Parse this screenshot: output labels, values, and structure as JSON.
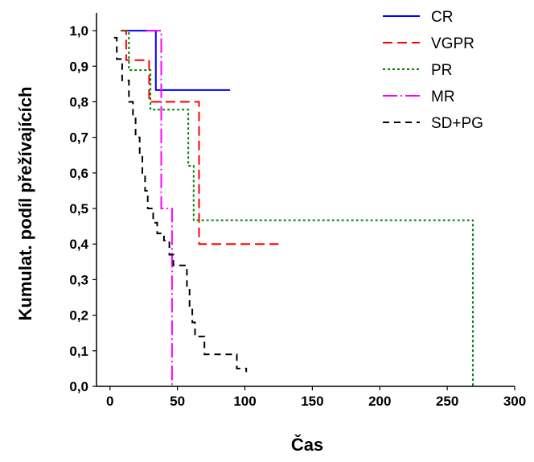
{
  "chart_data": {
    "type": "line",
    "step": true,
    "xlabel": "Čas",
    "ylabel": "Kumulat. podíl přežívajících",
    "xlim": [
      -10,
      300
    ],
    "ylim": [
      0,
      1.05
    ],
    "xticks": [
      {
        "value": 0,
        "label": "0"
      },
      {
        "value": 50,
        "label": "50"
      },
      {
        "value": 100,
        "label": "100"
      },
      {
        "value": 150,
        "label": "150"
      },
      {
        "value": 200,
        "label": "200"
      },
      {
        "value": 250,
        "label": "250"
      },
      {
        "value": 300,
        "label": "300"
      }
    ],
    "yticks": [
      {
        "value": 0.0,
        "label": "0,0"
      },
      {
        "value": 0.1,
        "label": "0,1"
      },
      {
        "value": 0.2,
        "label": "0,2"
      },
      {
        "value": 0.3,
        "label": "0,3"
      },
      {
        "value": 0.4,
        "label": "0,4"
      },
      {
        "value": 0.5,
        "label": "0,5"
      },
      {
        "value": 0.6,
        "label": "0,6"
      },
      {
        "value": 0.7,
        "label": "0,7"
      },
      {
        "value": 0.8,
        "label": "0,8"
      },
      {
        "value": 0.9,
        "label": "0,9"
      },
      {
        "value": 1.0,
        "label": "1,0"
      }
    ],
    "legend_position": "top-right",
    "series": [
      {
        "name": "CR",
        "color": "#0000ff",
        "dash": "solid",
        "points": [
          [
            10,
            1.0
          ],
          [
            34,
            1.0
          ],
          [
            34,
            0.833
          ],
          [
            89,
            0.833
          ]
        ]
      },
      {
        "name": "VGPR",
        "color": "#ff0000",
        "dash": "long-dash",
        "points": [
          [
            8,
            1.0
          ],
          [
            12,
            1.0
          ],
          [
            12,
            0.917
          ],
          [
            29,
            0.917
          ],
          [
            29,
            0.8
          ],
          [
            66,
            0.8
          ],
          [
            66,
            0.4
          ],
          [
            125,
            0.4
          ]
        ]
      },
      {
        "name": "PR",
        "color": "#008000",
        "dash": "dotted",
        "points": [
          [
            8,
            1.0
          ],
          [
            14,
            1.0
          ],
          [
            14,
            0.889
          ],
          [
            30,
            0.889
          ],
          [
            30,
            0.778
          ],
          [
            58,
            0.778
          ],
          [
            58,
            0.62
          ],
          [
            62,
            0.62
          ],
          [
            62,
            0.467
          ],
          [
            269,
            0.467
          ],
          [
            269,
            0.0
          ]
        ]
      },
      {
        "name": "MR",
        "color": "#ff00ff",
        "dash": "dash-dot",
        "points": [
          [
            27,
            1.0
          ],
          [
            38,
            1.0
          ],
          [
            38,
            0.5
          ],
          [
            46,
            0.5
          ],
          [
            46,
            0.0
          ]
        ]
      },
      {
        "name": "SD+PG",
        "color": "#000000",
        "dash": "dashed",
        "points": [
          [
            3,
            0.98
          ],
          [
            5,
            0.98
          ],
          [
            5,
            0.92
          ],
          [
            9,
            0.92
          ],
          [
            9,
            0.86
          ],
          [
            14,
            0.86
          ],
          [
            14,
            0.8
          ],
          [
            17,
            0.8
          ],
          [
            17,
            0.76
          ],
          [
            19,
            0.76
          ],
          [
            19,
            0.7
          ],
          [
            22,
            0.7
          ],
          [
            22,
            0.65
          ],
          [
            24,
            0.65
          ],
          [
            24,
            0.6
          ],
          [
            26,
            0.6
          ],
          [
            26,
            0.55
          ],
          [
            28,
            0.55
          ],
          [
            28,
            0.5
          ],
          [
            32,
            0.5
          ],
          [
            32,
            0.46
          ],
          [
            35,
            0.46
          ],
          [
            35,
            0.43
          ],
          [
            40,
            0.43
          ],
          [
            40,
            0.41
          ],
          [
            44,
            0.41
          ],
          [
            44,
            0.37
          ],
          [
            47,
            0.37
          ],
          [
            47,
            0.34
          ],
          [
            57,
            0.34
          ],
          [
            57,
            0.28
          ],
          [
            59,
            0.28
          ],
          [
            59,
            0.22
          ],
          [
            61,
            0.22
          ],
          [
            61,
            0.18
          ],
          [
            63,
            0.18
          ],
          [
            63,
            0.14
          ],
          [
            70,
            0.14
          ],
          [
            70,
            0.09
          ],
          [
            94,
            0.09
          ],
          [
            94,
            0.05
          ],
          [
            101,
            0.05
          ],
          [
            101,
            0.04
          ]
        ]
      }
    ]
  }
}
